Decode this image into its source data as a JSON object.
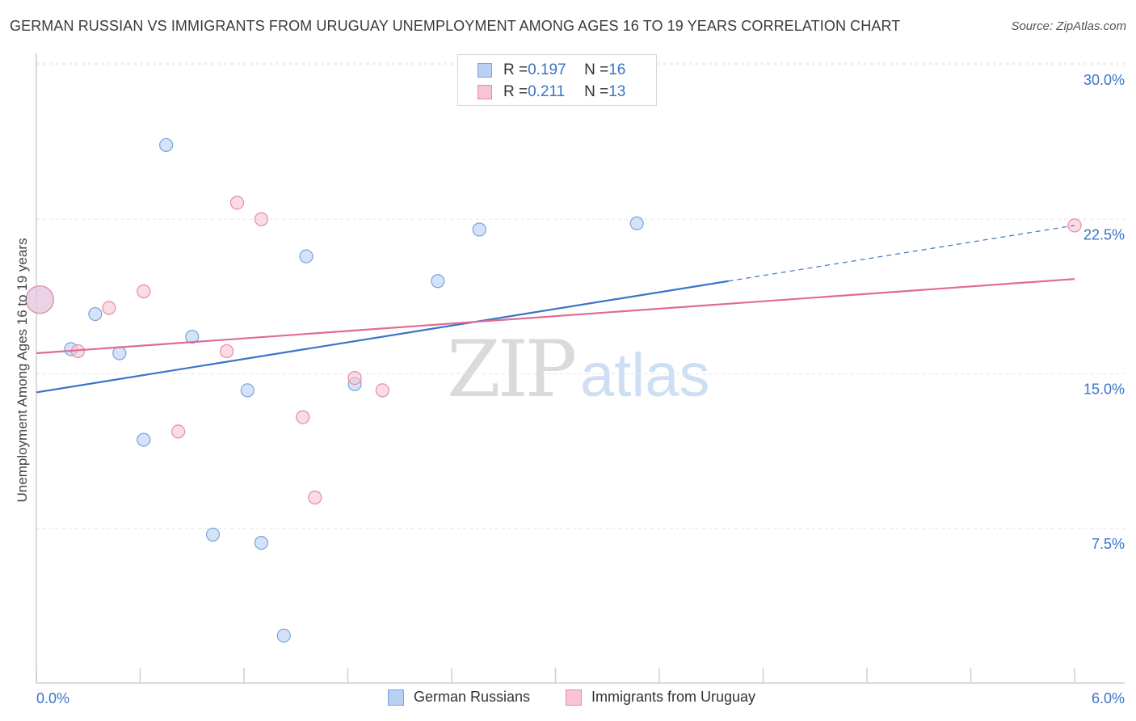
{
  "title": "GERMAN RUSSIAN VS IMMIGRANTS FROM URUGUAY UNEMPLOYMENT AMONG AGES 16 TO 19 YEARS CORRELATION CHART",
  "source": "Source: ZipAtlas.com",
  "watermark": {
    "zip": "ZIP",
    "atlas": "atlas"
  },
  "legend_stats": [
    {
      "r_label": "R = ",
      "r_value": "0.197",
      "n_label": "N = ",
      "n_value": "16"
    },
    {
      "r_label": "R = ",
      "r_value": "0.211",
      "n_label": "N = ",
      "n_value": "13"
    }
  ],
  "colors": {
    "blue_fill": "#b7d0f3",
    "blue_stroke": "#7aa3dc",
    "blue_line": "#3a73c9",
    "pink_fill": "#f8c4d4",
    "pink_stroke": "#e68aa6",
    "pink_line": "#e06b94",
    "tick_text": "#3a73c9",
    "grid": "#e6e6e6"
  },
  "chart_data": {
    "type": "scatter",
    "xlabel": "",
    "ylabel": "Unemployment Among Ages 16 to 19 years",
    "xlim": [
      0,
      6
    ],
    "ylim": [
      0,
      31
    ],
    "x_tick_labels": {
      "min": "0.0%",
      "max": "6.0%"
    },
    "y_ticks": [
      {
        "value": 30,
        "label": "30.0%"
      },
      {
        "value": 22.5,
        "label": "22.5%"
      },
      {
        "value": 15,
        "label": "15.0%"
      },
      {
        "value": 7.5,
        "label": "7.5%"
      }
    ],
    "grid": true,
    "series": [
      {
        "name": "German Russians",
        "color": "#7aa3dc",
        "points": [
          {
            "x": 0.02,
            "y": 18.6,
            "big": true
          },
          {
            "x": 0.2,
            "y": 16.2
          },
          {
            "x": 0.34,
            "y": 17.9
          },
          {
            "x": 0.48,
            "y": 16.0
          },
          {
            "x": 0.62,
            "y": 11.8
          },
          {
            "x": 0.75,
            "y": 26.1
          },
          {
            "x": 0.9,
            "y": 16.8
          },
          {
            "x": 1.02,
            "y": 7.2
          },
          {
            "x": 1.22,
            "y": 14.2
          },
          {
            "x": 1.3,
            "y": 6.8
          },
          {
            "x": 1.43,
            "y": 2.3
          },
          {
            "x": 1.56,
            "y": 20.7
          },
          {
            "x": 1.84,
            "y": 14.5
          },
          {
            "x": 2.32,
            "y": 19.5
          },
          {
            "x": 2.56,
            "y": 22.0
          },
          {
            "x": 3.47,
            "y": 22.3
          }
        ],
        "trend": {
          "x0": 0,
          "y0": 14.1,
          "x1": 4.0,
          "y1": 19.5,
          "dash_to_x": 6.0,
          "dash_to_y": 22.2
        }
      },
      {
        "name": "Immigrants from Uruguay",
        "color": "#e68aa6",
        "points": [
          {
            "x": 0.02,
            "y": 18.6,
            "big": true
          },
          {
            "x": 0.24,
            "y": 16.1
          },
          {
            "x": 0.42,
            "y": 18.2
          },
          {
            "x": 0.62,
            "y": 19.0
          },
          {
            "x": 0.82,
            "y": 12.2
          },
          {
            "x": 1.1,
            "y": 16.1
          },
          {
            "x": 1.16,
            "y": 23.3
          },
          {
            "x": 1.3,
            "y": 22.5
          },
          {
            "x": 1.54,
            "y": 12.9
          },
          {
            "x": 1.61,
            "y": 9.0
          },
          {
            "x": 1.84,
            "y": 14.8
          },
          {
            "x": 2.0,
            "y": 14.2
          },
          {
            "x": 6.0,
            "y": 22.2
          }
        ],
        "trend": {
          "x0": 0,
          "y0": 16.0,
          "x1": 6.0,
          "y1": 19.6
        }
      }
    ]
  }
}
